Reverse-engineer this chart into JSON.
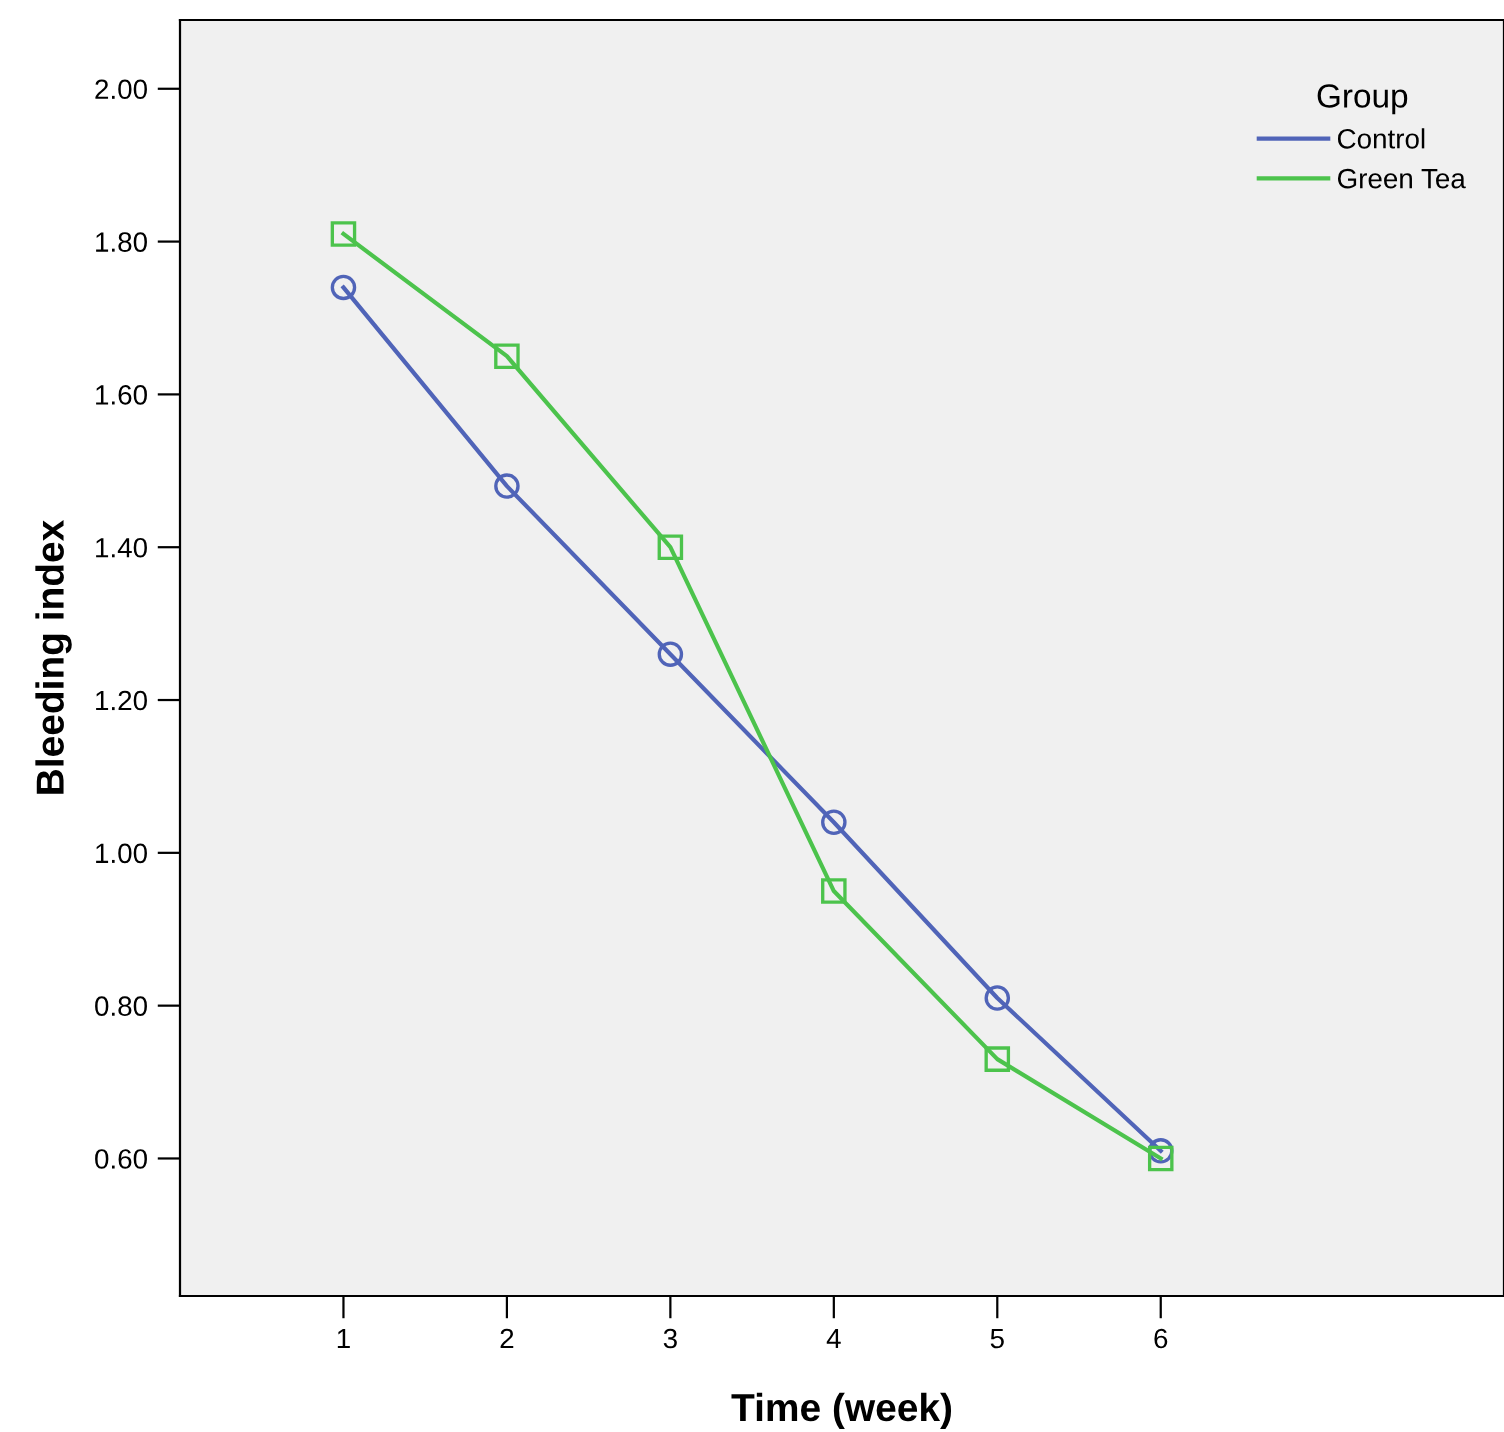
{
  "chart_data": {
    "type": "line",
    "xlabel": "Time (week)",
    "ylabel": "Bleeding index",
    "legend_title": "Group",
    "legend": "top right",
    "grid": false,
    "xlim": [
      0,
      8.1
    ],
    "xticks": [
      1,
      2,
      3,
      4,
      5,
      6
    ],
    "ylim": [
      0.42,
      2.09
    ],
    "yticks": [
      {
        "value": 0.6,
        "label": "0.60"
      },
      {
        "value": 0.8,
        "label": "0.80"
      },
      {
        "value": 1.0,
        "label": "1.00"
      },
      {
        "value": 1.2,
        "label": "1.20"
      },
      {
        "value": 1.4,
        "label": "1.40"
      },
      {
        "value": 1.6,
        "label": "1.60"
      },
      {
        "value": 1.8,
        "label": "1.80"
      },
      {
        "value": 2.0,
        "label": "2.00"
      }
    ],
    "x": [
      1,
      2,
      3,
      4,
      5,
      6
    ],
    "series": [
      {
        "name": "Control",
        "color": "#5064b8",
        "marker": "circle",
        "values": [
          1.74,
          1.48,
          1.26,
          1.04,
          0.81,
          0.61
        ]
      },
      {
        "name": "Green Tea",
        "color": "#4cc34c",
        "marker": "square",
        "values": [
          1.81,
          1.65,
          1.4,
          0.95,
          0.73,
          0.6
        ]
      }
    ]
  }
}
